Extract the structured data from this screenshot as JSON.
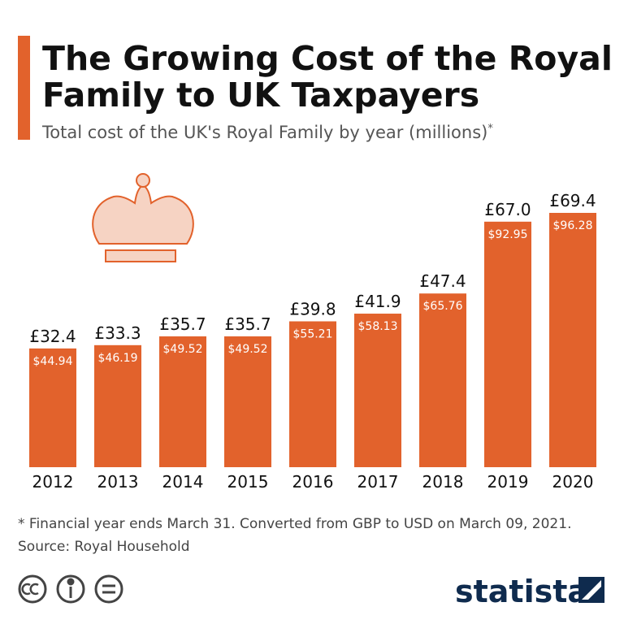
{
  "chart_data": {
    "type": "bar",
    "title_lines": [
      "The Growing Cost of the Royal",
      "Family to UK Taxpayers"
    ],
    "subtitle": "Total cost of the UK's Royal Family by year (millions)",
    "subtitle_mark": "*",
    "categories": [
      "2012",
      "2013",
      "2014",
      "2015",
      "2016",
      "2017",
      "2018",
      "2019",
      "2020"
    ],
    "values": [
      32.4,
      33.3,
      35.7,
      35.7,
      39.8,
      41.9,
      47.4,
      67.0,
      69.4
    ],
    "value_labels": [
      "£32.4",
      "£33.3",
      "£35.7",
      "£35.7",
      "£39.8",
      "£41.9",
      "£47.4",
      "£67.0",
      "£69.4"
    ],
    "secondary_values": [
      44.94,
      46.19,
      49.52,
      49.52,
      55.21,
      58.13,
      65.76,
      92.95,
      96.28
    ],
    "secondary_value_labels": [
      "$44.94",
      "$46.19",
      "$49.52",
      "$49.52",
      "$55.21",
      "$58.13",
      "$65.76",
      "$92.95",
      "$96.28"
    ],
    "color": "#e2622c",
    "footnote": "* Financial year ends March 31. Converted from GBP to USD on March 09, 2021.",
    "source": "Source: Royal Household",
    "brand": "statista"
  }
}
